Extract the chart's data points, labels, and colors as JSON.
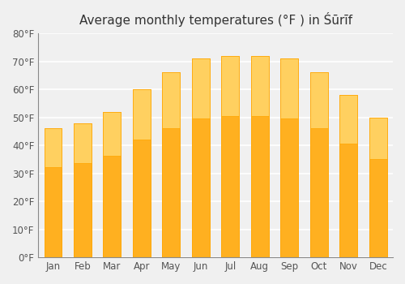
{
  "title": "Average monthly temperatures (°F ) in Śūrīf",
  "months": [
    "Jan",
    "Feb",
    "Mar",
    "Apr",
    "May",
    "Jun",
    "Jul",
    "Aug",
    "Sep",
    "Oct",
    "Nov",
    "Dec"
  ],
  "values": [
    46,
    48,
    52,
    60,
    66,
    71,
    72,
    72,
    71,
    66,
    58,
    50
  ],
  "bar_color_top": "#FFA500",
  "bar_color_bottom": "#FFD070",
  "ylim": [
    0,
    80
  ],
  "yticks": [
    0,
    10,
    20,
    30,
    40,
    50,
    60,
    70,
    80
  ],
  "ytick_labels": [
    "0°F",
    "10°F",
    "20°F",
    "30°F",
    "40°F",
    "50°F",
    "60°F",
    "70°F",
    "80°F"
  ],
  "background_color": "#f0f0f0",
  "grid_color": "#ffffff",
  "bar_edge_color": "#FFA500",
  "title_fontsize": 11
}
